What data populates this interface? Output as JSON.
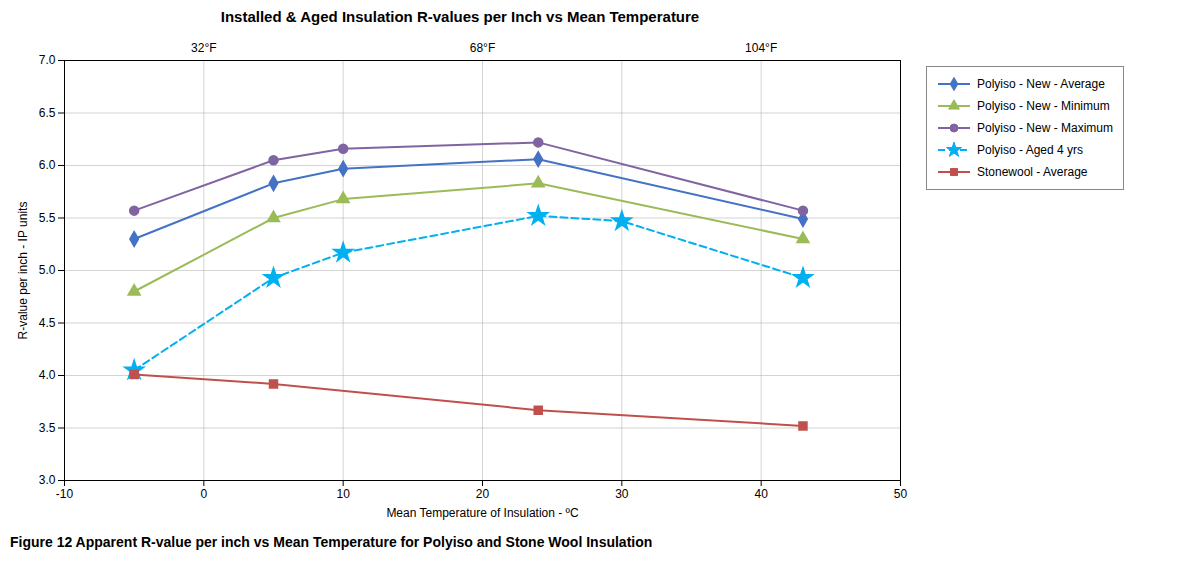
{
  "chart_data": {
    "type": "line",
    "title": "Installed & Aged Insulation R-values per Inch vs Mean Temperature",
    "xlabel": "Mean Temperature of Insulation - ºC",
    "ylabel": "R-value per inch - IP units",
    "caption": "Figure 12 Apparent R-value per inch vs Mean Temperature for Polyiso and Stone Wool Insulation",
    "xlim": [
      -10,
      50
    ],
    "ylim": [
      3.0,
      7.0
    ],
    "xticks": [
      -10,
      0,
      10,
      20,
      30,
      40,
      50
    ],
    "yticks": [
      {
        "value": 3.0,
        "label": "3.0"
      },
      3.5,
      {
        "value": 4.0,
        "label": "4.0"
      },
      4.5,
      {
        "value": 5.0,
        "label": "5.0"
      },
      5.5,
      {
        "value": 6.0,
        "label": "6.0"
      },
      6.5,
      {
        "value": 7.0,
        "label": "7.0"
      }
    ],
    "x2lim": [
      -10,
      50
    ],
    "x2ticks": [
      {
        "value": 0,
        "label": "32°F"
      },
      {
        "value": 20,
        "label": "68°F"
      },
      {
        "value": 40,
        "label": "104°F"
      }
    ],
    "grid": true,
    "legend": "right",
    "series": [
      {
        "name": "Polyiso - New - Average",
        "color": "#4472C4",
        "marker": "diamond",
        "line_style": "solid",
        "x": [
          -5,
          5,
          10,
          24,
          43
        ],
        "values": [
          5.3,
          5.83,
          5.97,
          6.06,
          5.49
        ]
      },
      {
        "name": "Polyiso - New - Minimum",
        "color": "#9BBB59",
        "marker": "triangle",
        "line_style": "solid",
        "x": [
          -5,
          5,
          10,
          24,
          43
        ],
        "values": [
          4.8,
          5.5,
          5.68,
          5.83,
          5.3
        ]
      },
      {
        "name": "Polyiso - New - Maximum",
        "color": "#8064A2",
        "marker": "circle",
        "line_style": "solid",
        "x": [
          -5,
          5,
          10,
          24,
          43
        ],
        "values": [
          5.57,
          6.05,
          6.16,
          6.22,
          5.57
        ]
      },
      {
        "name": "Polyiso - Aged 4 yrs",
        "color": "#00B0F0",
        "marker": "star",
        "line_style": "dashed",
        "x": [
          -5,
          5,
          10,
          24,
          30,
          43
        ],
        "values": [
          4.05,
          4.93,
          5.17,
          5.52,
          5.47,
          4.93
        ]
      },
      {
        "name": "Stonewool - Average",
        "color": "#C0504D",
        "marker": "square",
        "line_style": "solid",
        "x": [
          -5,
          5,
          24,
          43
        ],
        "values": [
          4.01,
          3.92,
          3.67,
          3.52
        ]
      }
    ]
  }
}
